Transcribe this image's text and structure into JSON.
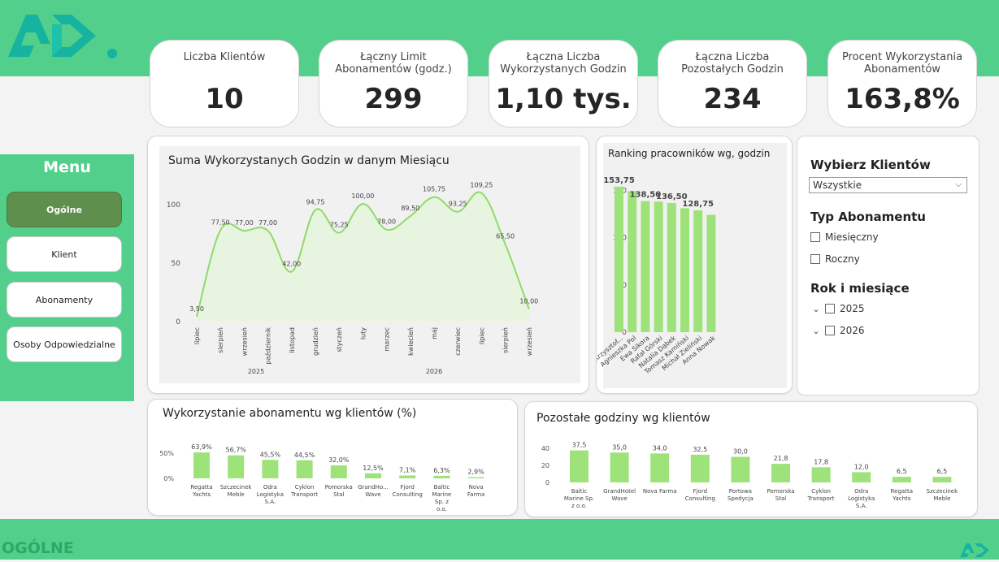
{
  "footer": {
    "page_title": "OGÓLNE"
  },
  "colors": {
    "brand_green": "#52d08b",
    "bar_green": "#9de37a",
    "line_green": "#8fdb6a",
    "active_menu": "#5f8f4d"
  },
  "kpis": [
    {
      "label": "Liczba Klientów",
      "value": "10"
    },
    {
      "label": "Łączny Limit Abonamentów (godz.)",
      "value": "299"
    },
    {
      "label": "Łączna Liczba Wykorzystanych Godzin",
      "value": "1,10 tys."
    },
    {
      "label": "Łączna Liczba Pozostałych Godzin",
      "value": "234"
    },
    {
      "label": "Procent Wykorzystania Abonamentów",
      "value": "163,8%"
    }
  ],
  "menu": {
    "title": "Menu",
    "items": [
      {
        "label": "Ogólne",
        "active": true
      },
      {
        "label": "Klient"
      },
      {
        "label": "Abonamenty"
      },
      {
        "label": "Osoby Odpowiedzialne"
      }
    ]
  },
  "slicers": {
    "clients_title": "Wybierz Klientów",
    "clients_value": "Wszystkie",
    "type_title": "Typ Abonamentu",
    "type_options": [
      "Miesięczny",
      "Roczny"
    ],
    "year_title": "Rok i miesiące",
    "year_options": [
      "2025",
      "2026"
    ]
  },
  "chart_data": [
    {
      "type": "area",
      "title": "Suma Wykorzystanych Godzin w danym Miesiącu",
      "categories": [
        "lipiec",
        "sierpień",
        "wrzesień",
        "październik",
        "listopad",
        "grudzień",
        "styczeń",
        "luty",
        "marzec",
        "kwiecień",
        "maj",
        "czerwiec",
        "lipiec",
        "sierpień",
        "wrzesień"
      ],
      "values": [
        3.5,
        77.5,
        77.0,
        77.0,
        42.0,
        94.75,
        75.25,
        100.0,
        78.0,
        89.5,
        105.75,
        93.25,
        109.25,
        65.5,
        10.0
      ],
      "labels": [
        "3,50",
        "77,50",
        "77,00",
        "77,00",
        "42,00",
        "94,75",
        "75,25",
        "100,00",
        "78,00",
        "89,50",
        "105,75",
        "93,25",
        "109,25",
        "65,50",
        "10,00"
      ],
      "year_groups": [
        {
          "label": "2025",
          "from": 0,
          "to": 5
        },
        {
          "label": "2026",
          "from": 6,
          "to": 14
        }
      ],
      "y_ticks": [
        0,
        50,
        100
      ],
      "ylim": [
        0,
        125
      ]
    },
    {
      "type": "bar",
      "title": "Ranking pracowników wg, godzin",
      "categories": [
        "Krzysztof...",
        "Agnieszka Pol",
        "Ewa Sikora",
        "Rafał Górski",
        "Natalia Dąbek",
        "Tomasz Kamiński",
        "Michał Zieliński",
        "Anna Nowak"
      ],
      "values": [
        153.75,
        149,
        138.5,
        138,
        136.5,
        131,
        128.75,
        124
      ],
      "labels": [
        "153,75",
        "",
        "138,50",
        "",
        "136,50",
        "",
        "128,75",
        ""
      ],
      "y_ticks": [
        0,
        50,
        100,
        150
      ],
      "ylim": [
        0,
        165
      ]
    },
    {
      "type": "bar",
      "title": "Wykorzystanie abonamentu wg klientów (%)",
      "categories": [
        "Regatta Yachts",
        "Szczecinek Meble",
        "Odra Logistyka S.A.",
        "Cyklon Transport",
        "Pomorska Stal",
        "GrandHo... Wave",
        "Fjord Consulting",
        "Baltic Marine Sp. z o.o.",
        "Nova Farma"
      ],
      "values": [
        63.9,
        56.7,
        45.5,
        44.5,
        32.0,
        12.5,
        7.1,
        6.3,
        2.9
      ],
      "labels": [
        "63,9%",
        "56,7%",
        "45,5%",
        "44,5%",
        "32,0%",
        "12,5%",
        "7,1%",
        "6,3%",
        "2,9%"
      ],
      "y_ticks": [
        "0%",
        "50%"
      ],
      "ylim": [
        0,
        75
      ]
    },
    {
      "type": "bar",
      "title": "Pozostałe godziny wg klientów",
      "categories": [
        "Baltic Marine Sp. z o.o.",
        "GrandHotel Wave",
        "Nova Farma",
        "Fjord Consulting",
        "Portowa Spedycja",
        "Pomorska Stal",
        "Cyklon Transport",
        "Odra Logistyka S.A.",
        "Regatta Yachts",
        "Szczecinek Meble"
      ],
      "values": [
        37.5,
        35.0,
        34.0,
        32.5,
        30.0,
        21.8,
        17.8,
        12.0,
        6.5,
        6.5
      ],
      "labels": [
        "37,5",
        "35,0",
        "34,0",
        "32,5",
        "30,0",
        "21,8",
        "17,8",
        "12,0",
        "6,5",
        "6,5"
      ],
      "y_ticks": [
        0,
        20,
        40
      ],
      "ylim": [
        0,
        45
      ]
    }
  ]
}
